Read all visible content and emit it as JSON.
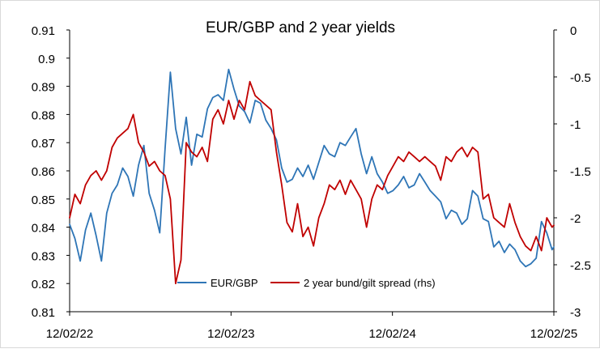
{
  "chart_data": {
    "type": "line",
    "title": "EUR/GBP and 2 year yields",
    "xlabel": "",
    "ylabel": "",
    "x_range": [
      "2022-02-12",
      "2025-02-12"
    ],
    "x_ticks": [
      "12/02/22",
      "12/02/23",
      "12/02/24",
      "12/02/25"
    ],
    "y_left": {
      "range": [
        0.81,
        0.91
      ],
      "ticks": [
        "0.81",
        "0.82",
        "0.83",
        "0.84",
        "0.85",
        "0.86",
        "0.87",
        "0.88",
        "0.89",
        "0.9",
        "0.91"
      ]
    },
    "y_right": {
      "range": [
        -3,
        0
      ],
      "ticks": [
        "-3",
        "-2.5",
        "-2",
        "-1.5",
        "-1",
        "-0.5",
        "0"
      ]
    },
    "legend_position": "inside-bottom-center",
    "series": [
      {
        "name": "EUR/GBP",
        "axis": "left",
        "color": "#2e75b6",
        "points": [
          [
            "2022-02-12",
            0.841
          ],
          [
            "2022-02-24",
            0.836
          ],
          [
            "2022-03-08",
            0.828
          ],
          [
            "2022-03-20",
            0.839
          ],
          [
            "2022-04-01",
            0.845
          ],
          [
            "2022-04-13",
            0.837
          ],
          [
            "2022-04-25",
            0.828
          ],
          [
            "2022-05-07",
            0.845
          ],
          [
            "2022-05-19",
            0.852
          ],
          [
            "2022-05-31",
            0.855
          ],
          [
            "2022-06-12",
            0.861
          ],
          [
            "2022-06-24",
            0.858
          ],
          [
            "2022-07-06",
            0.851
          ],
          [
            "2022-07-18",
            0.862
          ],
          [
            "2022-07-30",
            0.869
          ],
          [
            "2022-08-11",
            0.852
          ],
          [
            "2022-08-23",
            0.846
          ],
          [
            "2022-09-04",
            0.838
          ],
          [
            "2022-09-16",
            0.868
          ],
          [
            "2022-09-28",
            0.895
          ],
          [
            "2022-10-10",
            0.875
          ],
          [
            "2022-10-22",
            0.866
          ],
          [
            "2022-11-03",
            0.879
          ],
          [
            "2022-11-15",
            0.862
          ],
          [
            "2022-11-27",
            0.873
          ],
          [
            "2022-12-09",
            0.872
          ],
          [
            "2022-12-21",
            0.882
          ],
          [
            "2023-01-02",
            0.886
          ],
          [
            "2023-01-14",
            0.887
          ],
          [
            "2023-01-26",
            0.885
          ],
          [
            "2023-02-07",
            0.896
          ],
          [
            "2023-02-19",
            0.889
          ],
          [
            "2023-03-03",
            0.883
          ],
          [
            "2023-03-15",
            0.881
          ],
          [
            "2023-03-27",
            0.877
          ],
          [
            "2023-04-08",
            0.885
          ],
          [
            "2023-04-20",
            0.884
          ],
          [
            "2023-05-02",
            0.878
          ],
          [
            "2023-05-14",
            0.875
          ],
          [
            "2023-05-26",
            0.871
          ],
          [
            "2023-06-07",
            0.861
          ],
          [
            "2023-06-19",
            0.856
          ],
          [
            "2023-07-01",
            0.857
          ],
          [
            "2023-07-13",
            0.861
          ],
          [
            "2023-07-25",
            0.858
          ],
          [
            "2023-08-06",
            0.862
          ],
          [
            "2023-08-18",
            0.857
          ],
          [
            "2023-08-30",
            0.863
          ],
          [
            "2023-09-11",
            0.869
          ],
          [
            "2023-09-23",
            0.866
          ],
          [
            "2023-10-05",
            0.865
          ],
          [
            "2023-10-17",
            0.87
          ],
          [
            "2023-10-29",
            0.869
          ],
          [
            "2023-11-10",
            0.872
          ],
          [
            "2023-11-22",
            0.875
          ],
          [
            "2023-12-04",
            0.866
          ],
          [
            "2023-12-16",
            0.859
          ],
          [
            "2023-12-28",
            0.865
          ],
          [
            "2024-01-09",
            0.859
          ],
          [
            "2024-01-21",
            0.856
          ],
          [
            "2024-02-02",
            0.852
          ],
          [
            "2024-02-14",
            0.853
          ],
          [
            "2024-02-26",
            0.855
          ],
          [
            "2024-03-09",
            0.858
          ],
          [
            "2024-03-21",
            0.854
          ],
          [
            "2024-04-02",
            0.855
          ],
          [
            "2024-04-14",
            0.859
          ],
          [
            "2024-04-26",
            0.856
          ],
          [
            "2024-05-08",
            0.853
          ],
          [
            "2024-05-20",
            0.851
          ],
          [
            "2024-06-01",
            0.849
          ],
          [
            "2024-06-13",
            0.843
          ],
          [
            "2024-06-25",
            0.846
          ],
          [
            "2024-07-07",
            0.845
          ],
          [
            "2024-07-19",
            0.841
          ],
          [
            "2024-07-31",
            0.843
          ],
          [
            "2024-08-12",
            0.853
          ],
          [
            "2024-08-24",
            0.851
          ],
          [
            "2024-09-05",
            0.843
          ],
          [
            "2024-09-17",
            0.842
          ],
          [
            "2024-09-29",
            0.833
          ],
          [
            "2024-10-11",
            0.835
          ],
          [
            "2024-10-23",
            0.831
          ],
          [
            "2024-11-04",
            0.834
          ],
          [
            "2024-11-16",
            0.832
          ],
          [
            "2024-11-28",
            0.828
          ],
          [
            "2024-12-10",
            0.826
          ],
          [
            "2024-12-22",
            0.827
          ],
          [
            "2025-01-03",
            0.829
          ],
          [
            "2025-01-15",
            0.842
          ],
          [
            "2025-01-27",
            0.838
          ],
          [
            "2025-02-08",
            0.832
          ],
          [
            "2025-02-12",
            0.833
          ]
        ]
      },
      {
        "name": "2 year bund/gilt spread (rhs)",
        "axis": "right",
        "color": "#c00000",
        "points": [
          [
            "2022-02-12",
            -2.0
          ],
          [
            "2022-02-24",
            -1.75
          ],
          [
            "2022-03-08",
            -1.85
          ],
          [
            "2022-03-20",
            -1.65
          ],
          [
            "2022-04-01",
            -1.55
          ],
          [
            "2022-04-13",
            -1.5
          ],
          [
            "2022-04-25",
            -1.6
          ],
          [
            "2022-05-07",
            -1.5
          ],
          [
            "2022-05-19",
            -1.25
          ],
          [
            "2022-05-31",
            -1.15
          ],
          [
            "2022-06-12",
            -1.1
          ],
          [
            "2022-06-24",
            -1.05
          ],
          [
            "2022-07-06",
            -0.9
          ],
          [
            "2022-07-18",
            -1.2
          ],
          [
            "2022-07-30",
            -1.3
          ],
          [
            "2022-08-11",
            -1.45
          ],
          [
            "2022-08-23",
            -1.4
          ],
          [
            "2022-09-04",
            -1.5
          ],
          [
            "2022-09-16",
            -1.55
          ],
          [
            "2022-09-28",
            -1.8
          ],
          [
            "2022-10-10",
            -2.7
          ],
          [
            "2022-10-22",
            -2.45
          ],
          [
            "2022-11-03",
            -1.2
          ],
          [
            "2022-11-15",
            -1.3
          ],
          [
            "2022-11-27",
            -1.35
          ],
          [
            "2022-12-09",
            -1.25
          ],
          [
            "2022-12-21",
            -1.4
          ],
          [
            "2023-01-02",
            -0.95
          ],
          [
            "2023-01-14",
            -0.85
          ],
          [
            "2023-01-26",
            -1.0
          ],
          [
            "2023-02-07",
            -0.75
          ],
          [
            "2023-02-19",
            -0.95
          ],
          [
            "2023-03-03",
            -0.75
          ],
          [
            "2023-03-15",
            -0.85
          ],
          [
            "2023-03-27",
            -0.55
          ],
          [
            "2023-04-08",
            -0.7
          ],
          [
            "2023-04-20",
            -0.75
          ],
          [
            "2023-05-02",
            -0.8
          ],
          [
            "2023-05-14",
            -0.85
          ],
          [
            "2023-05-26",
            -1.3
          ],
          [
            "2023-06-07",
            -1.65
          ],
          [
            "2023-06-19",
            -2.05
          ],
          [
            "2023-07-01",
            -2.15
          ],
          [
            "2023-07-13",
            -1.85
          ],
          [
            "2023-07-25",
            -2.2
          ],
          [
            "2023-08-06",
            -2.1
          ],
          [
            "2023-08-18",
            -2.3
          ],
          [
            "2023-08-30",
            -2.0
          ],
          [
            "2023-09-11",
            -1.85
          ],
          [
            "2023-09-23",
            -1.65
          ],
          [
            "2023-10-05",
            -1.7
          ],
          [
            "2023-10-17",
            -1.6
          ],
          [
            "2023-10-29",
            -1.75
          ],
          [
            "2023-11-10",
            -1.6
          ],
          [
            "2023-11-22",
            -1.7
          ],
          [
            "2023-12-04",
            -1.8
          ],
          [
            "2023-12-16",
            -2.1
          ],
          [
            "2023-12-28",
            -1.8
          ],
          [
            "2024-01-09",
            -1.65
          ],
          [
            "2024-01-21",
            -1.7
          ],
          [
            "2024-02-02",
            -1.55
          ],
          [
            "2024-02-14",
            -1.45
          ],
          [
            "2024-02-26",
            -1.35
          ],
          [
            "2024-03-09",
            -1.4
          ],
          [
            "2024-03-21",
            -1.3
          ],
          [
            "2024-04-02",
            -1.35
          ],
          [
            "2024-04-14",
            -1.4
          ],
          [
            "2024-04-26",
            -1.35
          ],
          [
            "2024-05-08",
            -1.4
          ],
          [
            "2024-05-20",
            -1.45
          ],
          [
            "2024-06-01",
            -1.6
          ],
          [
            "2024-06-13",
            -1.35
          ],
          [
            "2024-06-25",
            -1.4
          ],
          [
            "2024-07-07",
            -1.3
          ],
          [
            "2024-07-19",
            -1.25
          ],
          [
            "2024-07-31",
            -1.35
          ],
          [
            "2024-08-12",
            -1.25
          ],
          [
            "2024-08-24",
            -1.3
          ],
          [
            "2024-09-05",
            -1.8
          ],
          [
            "2024-09-17",
            -1.75
          ],
          [
            "2024-09-29",
            -2.0
          ],
          [
            "2024-10-11",
            -2.05
          ],
          [
            "2024-10-23",
            -2.1
          ],
          [
            "2024-11-04",
            -1.85
          ],
          [
            "2024-11-16",
            -2.05
          ],
          [
            "2024-11-28",
            -2.2
          ],
          [
            "2024-12-10",
            -2.3
          ],
          [
            "2024-12-22",
            -2.35
          ],
          [
            "2025-01-03",
            -2.2
          ],
          [
            "2025-01-15",
            -2.35
          ],
          [
            "2025-01-27",
            -2.0
          ],
          [
            "2025-02-08",
            -2.1
          ],
          [
            "2025-02-12",
            -2.08
          ]
        ]
      }
    ]
  }
}
